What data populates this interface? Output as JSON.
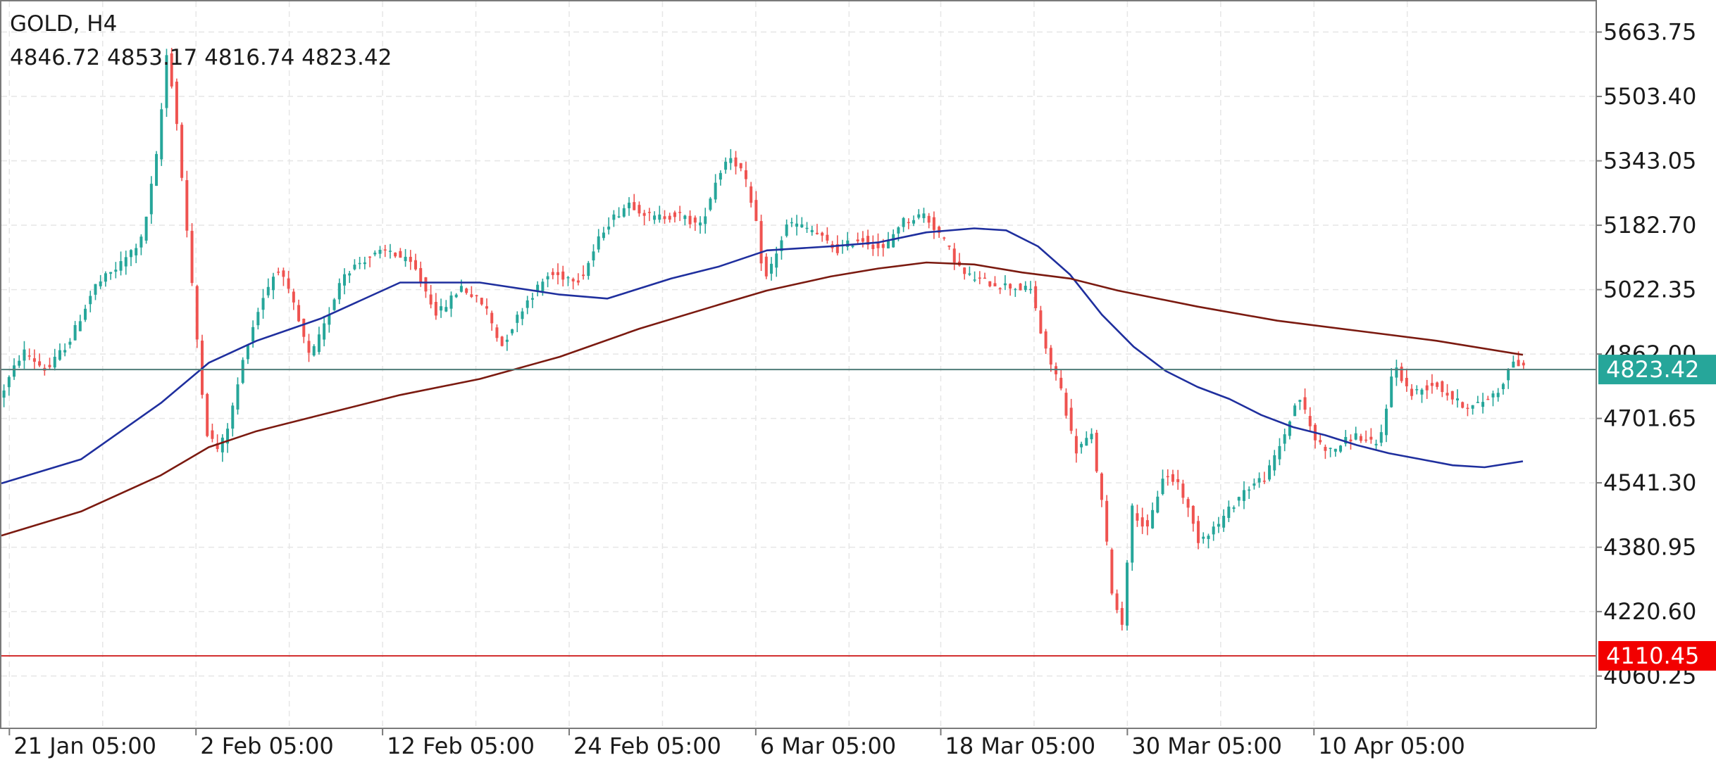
{
  "header": {
    "title": "GOLD, H4",
    "ohlc": "4846.72 4853.17 4816.74 4823.42"
  },
  "colors": {
    "background": "#ffffff",
    "grid": "#e6e6e6",
    "axis": "#7a7a7a",
    "bull": "#26a69a",
    "bear": "#ef5350",
    "ma_fast": "#1f2f9e",
    "ma_slow": "#7b1a10",
    "current_line": "#4f7c78",
    "current_badge": "#26a69a",
    "level_line": "#d32f2f",
    "level_badge": "#f20000"
  },
  "chart_data": {
    "type": "candlestick",
    "symbol": "GOLD",
    "timeframe": "H4",
    "ylim": [
      3930,
      5740
    ],
    "y_ticks": [
      4060.25,
      4220.6,
      4380.95,
      4541.3,
      4701.65,
      4862.0,
      5022.35,
      5182.7,
      5343.05,
      5503.4,
      5663.75
    ],
    "y_tick_labels": [
      "4060.25",
      "4220.60",
      "4380.95",
      "4541.30",
      "4701.65",
      "4862.00",
      "5022.35",
      "5182.70",
      "5343.05",
      "5503.40",
      "5663.75"
    ],
    "x_range": [
      0,
      100
    ],
    "x_ticks": [
      0.5,
      12.2,
      23.9,
      35.6,
      47.3,
      58.9,
      70.6,
      82.3
    ],
    "x_tick_labels": [
      "21 Jan 05:00",
      "2 Feb 05:00",
      "12 Feb 05:00",
      "24 Feb 05:00",
      "6 Mar 05:00",
      "18 Mar 05:00",
      "30 Mar 05:00",
      "10 Apr 05:00"
    ],
    "current_price": {
      "value": 4823.42,
      "label": "4823.42"
    },
    "level": {
      "value": 4110.45,
      "label": "4110.45"
    },
    "price_path": [
      [
        0,
        4750
      ],
      [
        1.5,
        4870
      ],
      [
        3,
        4820
      ],
      [
        4.5,
        4900
      ],
      [
        6,
        5030
      ],
      [
        7.5,
        5080
      ],
      [
        9,
        5150
      ],
      [
        10,
        5380
      ],
      [
        10.5,
        5610
      ],
      [
        11,
        5500
      ],
      [
        11.6,
        5250
      ],
      [
        12.3,
        4950
      ],
      [
        13,
        4670
      ],
      [
        13.8,
        4620
      ],
      [
        14.5,
        4700
      ],
      [
        15.5,
        4880
      ],
      [
        16.5,
        5000
      ],
      [
        17.5,
        5080
      ],
      [
        18.5,
        4980
      ],
      [
        19.5,
        4850
      ],
      [
        20.5,
        4940
      ],
      [
        21.5,
        5060
      ],
      [
        23,
        5100
      ],
      [
        24.5,
        5120
      ],
      [
        26,
        5080
      ],
      [
        27.5,
        4960
      ],
      [
        29,
        5030
      ],
      [
        30.5,
        4980
      ],
      [
        31.5,
        4880
      ],
      [
        33,
        4990
      ],
      [
        34.5,
        5060
      ],
      [
        36.5,
        5050
      ],
      [
        38,
        5180
      ],
      [
        39.5,
        5240
      ],
      [
        41,
        5200
      ],
      [
        42.5,
        5210
      ],
      [
        44,
        5180
      ],
      [
        45,
        5300
      ],
      [
        45.8,
        5360
      ],
      [
        46.7,
        5310
      ],
      [
        47.5,
        5180
      ],
      [
        48,
        5040
      ],
      [
        49.5,
        5190
      ],
      [
        51,
        5170
      ],
      [
        52.5,
        5120
      ],
      [
        54,
        5150
      ],
      [
        55.5,
        5120
      ],
      [
        56.5,
        5190
      ],
      [
        58,
        5210
      ],
      [
        59,
        5160
      ],
      [
        60.5,
        5060
      ],
      [
        62,
        5040
      ],
      [
        63.5,
        5030
      ],
      [
        64.8,
        5020
      ],
      [
        65.5,
        4880
      ],
      [
        66.5,
        4790
      ],
      [
        67.5,
        4620
      ],
      [
        68.5,
        4660
      ],
      [
        69.2,
        4480
      ],
      [
        69.8,
        4270
      ],
      [
        70.4,
        4180
      ],
      [
        71,
        4480
      ],
      [
        72,
        4420
      ],
      [
        73,
        4560
      ],
      [
        74,
        4540
      ],
      [
        75.2,
        4400
      ],
      [
        76.5,
        4440
      ],
      [
        78,
        4520
      ],
      [
        79.5,
        4560
      ],
      [
        80.5,
        4650
      ],
      [
        81.5,
        4760
      ],
      [
        82.5,
        4650
      ],
      [
        83.5,
        4620
      ],
      [
        85,
        4660
      ],
      [
        86.5,
        4630
      ],
      [
        87.5,
        4840
      ],
      [
        88.5,
        4760
      ],
      [
        90,
        4790
      ],
      [
        91.5,
        4740
      ],
      [
        92.5,
        4730
      ],
      [
        94,
        4770
      ],
      [
        95,
        4850
      ],
      [
        95.6,
        4823.42
      ]
    ],
    "series": [
      {
        "name": "",
        "color": "#1f2f9e",
        "x": [
          0,
          5,
          10,
          13,
          16,
          20,
          25,
          30,
          35,
          38,
          42,
          45,
          48,
          52,
          55,
          58,
          61,
          63,
          65,
          67,
          69,
          71,
          73,
          75,
          77,
          79,
          81,
          83,
          85,
          87,
          89,
          91,
          93,
          95.4
        ],
        "values": [
          4540,
          4600,
          4740,
          4840,
          4895,
          4950,
          5040,
          5040,
          5010,
          5000,
          5050,
          5080,
          5120,
          5130,
          5140,
          5165,
          5175,
          5170,
          5130,
          5060,
          4960,
          4880,
          4820,
          4780,
          4750,
          4710,
          4680,
          4660,
          4635,
          4615,
          4600,
          4585,
          4580,
          4595
        ]
      },
      {
        "name": "",
        "color": "#7b1a10",
        "x": [
          0,
          5,
          10,
          13,
          16,
          20,
          25,
          30,
          35,
          40,
          45,
          48,
          52,
          55,
          58,
          61,
          64,
          67,
          70,
          75,
          80,
          85,
          90,
          95.4
        ],
        "values": [
          4410,
          4470,
          4560,
          4630,
          4670,
          4710,
          4760,
          4800,
          4855,
          4925,
          4985,
          5020,
          5055,
          5075,
          5090,
          5085,
          5065,
          5050,
          5020,
          4980,
          4945,
          4920,
          4895,
          4860
        ]
      }
    ],
    "grid": true
  }
}
